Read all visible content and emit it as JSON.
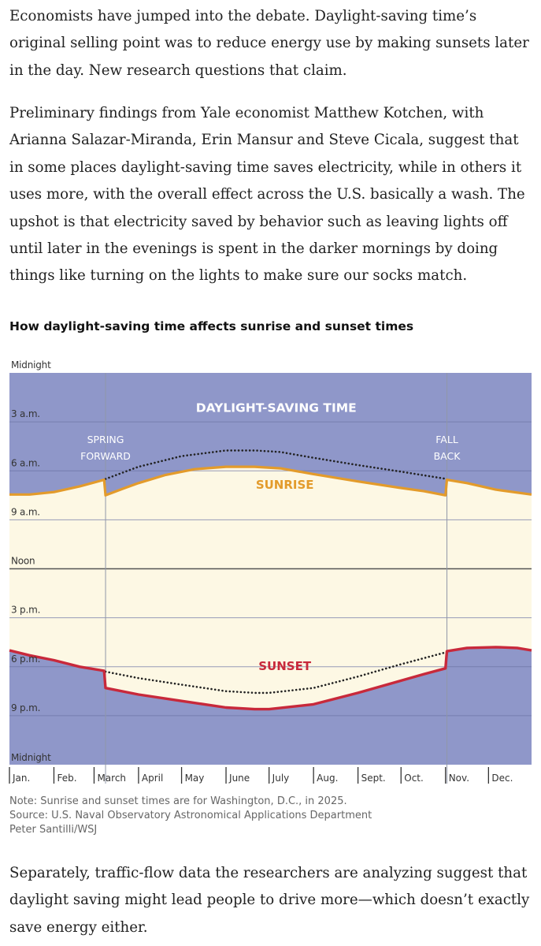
{
  "article": {
    "paragraphs": [
      "Economists have jumped into the debate. Daylight-saving time’s original selling point was to reduce energy use by making sunsets later in the day. New research questions that claim.",
      "Preliminary findings from Yale economist Matthew Kotchen, with Arianna Salazar-Miranda, Erin Mansur and Steve Cicala, suggest that in some places daylight-saving time saves electricity, while in others it uses more, with the overall effect across the U.S. basically a wash. The upshot is that electricity saved by behavior such as leaving lights off until later in the evenings is spent in the darker mornings by doing things like turning on the lights to make sure our socks match.",
      "Separately, traffic-flow data the researchers are analyzing suggest that daylight saving might lead people to drive more—which doesn’t exactly save energy either."
    ]
  },
  "chart_data": {
    "type": "area",
    "title": "How daylight-saving time affects sunrise and sunset times",
    "y_unit": "hour of day",
    "y_ticks": [
      {
        "value": 0,
        "label": "Midnight"
      },
      {
        "value": 3,
        "label": "3 a.m."
      },
      {
        "value": 6,
        "label": "6 a.m."
      },
      {
        "value": 9,
        "label": "9 a.m."
      },
      {
        "value": 12,
        "label": "Noon"
      },
      {
        "value": 15,
        "label": "3 p.m."
      },
      {
        "value": 18,
        "label": "6 p.m."
      },
      {
        "value": 21,
        "label": "9 p.m."
      },
      {
        "value": 24,
        "label": "Midnight"
      }
    ],
    "x_unit": "day of year",
    "x_range": [
      1,
      365
    ],
    "month_ticks": [
      {
        "day": 1,
        "label": "Jan."
      },
      {
        "day": 32,
        "label": "Feb."
      },
      {
        "day": 60,
        "label": "March"
      },
      {
        "day": 91,
        "label": "April"
      },
      {
        "day": 121,
        "label": "May"
      },
      {
        "day": 152,
        "label": "June"
      },
      {
        "day": 182,
        "label": "July"
      },
      {
        "day": 213,
        "label": "Aug."
      },
      {
        "day": 244,
        "label": "Sept."
      },
      {
        "day": 274,
        "label": "Oct."
      },
      {
        "day": 305,
        "label": "Nov."
      },
      {
        "day": 335,
        "label": "Dec."
      }
    ],
    "dst_start_day": 68,
    "dst_end_day": 306,
    "dst_label": "DAYLIGHT-SAVING TIME",
    "markers": [
      {
        "day": 68,
        "label_lines": [
          "SPRING",
          "FORWARD"
        ]
      },
      {
        "day": 306,
        "label_lines": [
          "FALL",
          "BACK"
        ]
      }
    ],
    "series": [
      {
        "name": "SUNRISE",
        "color": "#e39b2b",
        "points": [
          {
            "day": 1,
            "value": 7.45
          },
          {
            "day": 15,
            "value": 7.45
          },
          {
            "day": 32,
            "value": 7.3
          },
          {
            "day": 50,
            "value": 6.95
          },
          {
            "day": 67,
            "value": 6.55
          },
          {
            "day": 68,
            "value": 7.5
          },
          {
            "day": 80,
            "value": 7.1
          },
          {
            "day": 91,
            "value": 6.75
          },
          {
            "day": 110,
            "value": 6.25
          },
          {
            "day": 130,
            "value": 5.9
          },
          {
            "day": 152,
            "value": 5.75
          },
          {
            "day": 172,
            "value": 5.75
          },
          {
            "day": 190,
            "value": 5.85
          },
          {
            "day": 213,
            "value": 6.2
          },
          {
            "day": 244,
            "value": 6.65
          },
          {
            "day": 274,
            "value": 7.05
          },
          {
            "day": 290,
            "value": 7.25
          },
          {
            "day": 305,
            "value": 7.5
          },
          {
            "day": 306,
            "value": 6.55
          },
          {
            "day": 320,
            "value": 6.75
          },
          {
            "day": 340,
            "value": 7.15
          },
          {
            "day": 365,
            "value": 7.45
          }
        ]
      },
      {
        "name": "SUNSET",
        "color": "#c8293b",
        "points": [
          {
            "day": 1,
            "value": 17.0
          },
          {
            "day": 15,
            "value": 17.3
          },
          {
            "day": 32,
            "value": 17.6
          },
          {
            "day": 50,
            "value": 18.0
          },
          {
            "day": 67,
            "value": 18.25
          },
          {
            "day": 68,
            "value": 19.3
          },
          {
            "day": 91,
            "value": 19.7
          },
          {
            "day": 121,
            "value": 20.1
          },
          {
            "day": 152,
            "value": 20.5
          },
          {
            "day": 172,
            "value": 20.6
          },
          {
            "day": 182,
            "value": 20.6
          },
          {
            "day": 213,
            "value": 20.3
          },
          {
            "day": 244,
            "value": 19.6
          },
          {
            "day": 274,
            "value": 18.85
          },
          {
            "day": 290,
            "value": 18.45
          },
          {
            "day": 305,
            "value": 18.1
          },
          {
            "day": 306,
            "value": 17.05
          },
          {
            "day": 320,
            "value": 16.85
          },
          {
            "day": 340,
            "value": 16.8
          },
          {
            "day": 355,
            "value": 16.85
          },
          {
            "day": 365,
            "value": 17.0
          }
        ]
      },
      {
        "name": "",
        "style": "dotted",
        "color": "#222222",
        "points": [
          {
            "day": 68,
            "value": 6.5
          },
          {
            "day": 91,
            "value": 5.75
          },
          {
            "day": 121,
            "value": 5.1
          },
          {
            "day": 152,
            "value": 4.75
          },
          {
            "day": 172,
            "value": 4.75
          },
          {
            "day": 190,
            "value": 4.85
          },
          {
            "day": 213,
            "value": 5.2
          },
          {
            "day": 244,
            "value": 5.65
          },
          {
            "day": 274,
            "value": 6.05
          },
          {
            "day": 306,
            "value": 6.5
          }
        ]
      },
      {
        "name": "",
        "style": "dotted",
        "color": "#222222",
        "points": [
          {
            "day": 68,
            "value": 18.3
          },
          {
            "day": 91,
            "value": 18.7
          },
          {
            "day": 121,
            "value": 19.1
          },
          {
            "day": 152,
            "value": 19.5
          },
          {
            "day": 172,
            "value": 19.6
          },
          {
            "day": 182,
            "value": 19.6
          },
          {
            "day": 213,
            "value": 19.3
          },
          {
            "day": 244,
            "value": 18.6
          },
          {
            "day": 274,
            "value": 17.85
          },
          {
            "day": 306,
            "value": 17.1
          }
        ]
      }
    ],
    "series_labels": [
      {
        "series": "SUNRISE",
        "day": 182,
        "value": 7.1
      },
      {
        "series": "SUNSET",
        "day": 182,
        "value": 18.2
      }
    ],
    "colors": {
      "night": "#8f97c9",
      "day": "#fdf8e4",
      "grid": "#6c74a4",
      "sunrise": "#e39b2b",
      "sunset": "#c8293b"
    },
    "notes": [
      "Note: Sunrise and sunset times are for Washington, D.C., in 2025.",
      "Source: U.S. Naval Observatory Astronomical Applications Department",
      "Peter Santilli/WSJ"
    ]
  }
}
